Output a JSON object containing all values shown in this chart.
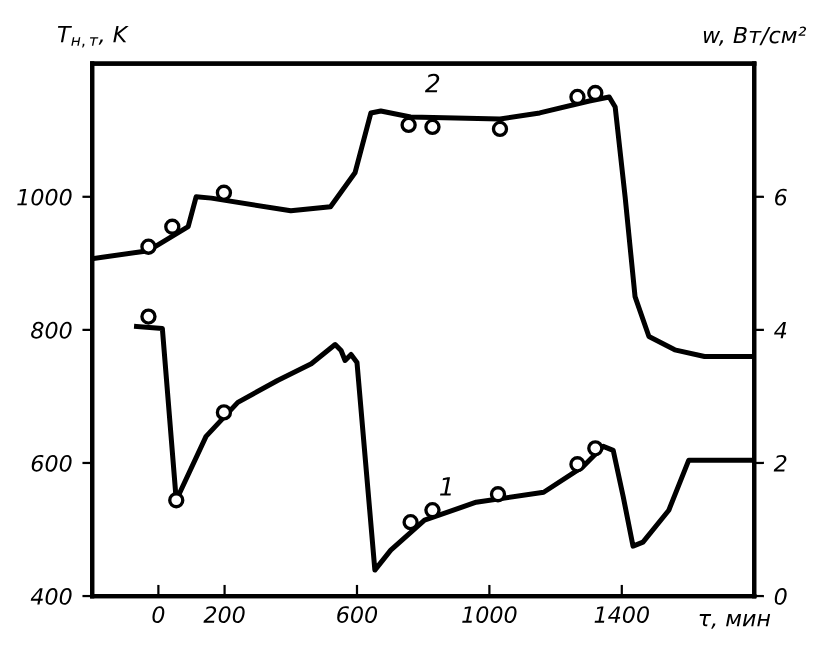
{
  "chart_data": {
    "type": "line",
    "xlabel": "τ, мин",
    "ylabel": "T$_{н,т}$, K",
    "y2label": "w, Вт/см²",
    "xlim": [
      -200,
      1800
    ],
    "xticks": [
      0,
      200,
      600,
      1000,
      1400
    ],
    "ylim": [
      400,
      1200
    ],
    "yticks": [
      400,
      600,
      800,
      1000
    ],
    "y2lim": [
      0,
      8
    ],
    "y2ticks": [
      0,
      2,
      4,
      6
    ],
    "grid": false,
    "line_style": "solid",
    "series": [
      {
        "name": "2",
        "color": "#000000",
        "x": [
          -200,
          -30,
          90,
          114,
          160,
          400,
          520,
          594,
          642,
          672,
          762,
          1032,
          1152,
          1302,
          1362,
          1380,
          1410,
          1440,
          1482,
          1560,
          1650,
          1800
        ],
        "values": [
          907,
          919,
          955,
          1000,
          998,
          979,
          985,
          1036,
          1126,
          1129,
          1120,
          1117,
          1126,
          1144,
          1150,
          1135,
          1000,
          850,
          790,
          770,
          760,
          760
        ]
      },
      {
        "type": "scatter",
        "marker": "circle",
        "color": "#000000",
        "x": [
          -30,
          42,
          198,
          756,
          828,
          1032,
          1266,
          1320
        ],
        "values": [
          925,
          955,
          1006,
          1108,
          1105,
          1102,
          1150,
          1156
        ]
      },
      {
        "name": "1",
        "color": "#000000",
        "x": [
          -66,
          12,
          54,
          144,
          240,
          360,
          462,
          534,
          552,
          564,
          582,
          600,
          654,
          702,
          804,
          960,
          1164,
          1284,
          1344,
          1374,
          1404,
          1434,
          1464,
          1542,
          1602,
          1800
        ],
        "values": [
          805,
          802,
          544,
          640,
          691,
          724,
          749,
          778,
          769,
          754,
          763,
          751,
          439,
          469,
          514,
          541,
          556,
          595,
          625,
          619,
          550,
          475,
          481,
          529,
          604,
          604
        ]
      },
      {
        "type": "scatter",
        "marker": "circle",
        "color": "#000000",
        "x": [
          -30,
          54,
          198,
          762,
          828,
          1026,
          1266,
          1320
        ],
        "values": [
          820,
          544,
          676,
          511,
          529,
          553,
          598,
          622
        ]
      }
    ]
  }
}
